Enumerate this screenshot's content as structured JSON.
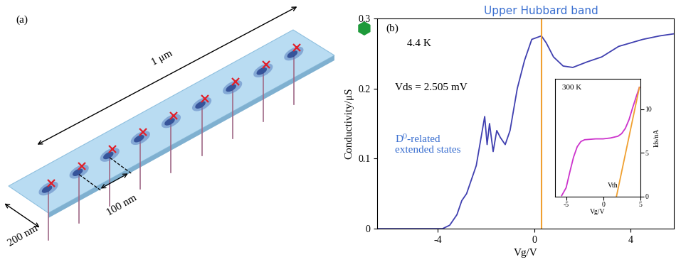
{
  "panel_a": {
    "label": "(a)",
    "length": "1 μm",
    "width": "200 nm",
    "spacing": "100 nm"
  },
  "chart_data": [
    {
      "type": "line",
      "title": "(b)",
      "x_label": "Vg/V",
      "y_label": "Conductivity/μS",
      "x": [
        -6.5,
        -4.5,
        -3.8,
        -3.5,
        -3.2,
        -3.0,
        -2.8,
        -2.6,
        -2.4,
        -2.2,
        -2.05,
        -1.95,
        -1.85,
        -1.7,
        -1.55,
        -1.4,
        -1.2,
        -1.0,
        -0.7,
        -0.4,
        -0.1,
        0.3,
        0.5,
        0.8,
        1.2,
        1.6,
        2.2,
        2.8,
        3.5,
        4.5,
        5.2,
        5.8
      ],
      "values": [
        0,
        0,
        0,
        0.005,
        0.02,
        0.04,
        0.05,
        0.07,
        0.09,
        0.13,
        0.16,
        0.12,
        0.15,
        0.11,
        0.14,
        0.13,
        0.12,
        0.14,
        0.2,
        0.24,
        0.27,
        0.275,
        0.265,
        0.245,
        0.232,
        0.23,
        0.238,
        0.245,
        0.26,
        0.27,
        0.275,
        0.278
      ],
      "color": "#4040b0",
      "xlim": [
        -6.5,
        5.8
      ],
      "xticks": [
        -4,
        0,
        4
      ],
      "ylim": [
        0,
        0.3
      ],
      "yticks": [
        0,
        0.1,
        0.2,
        0.3
      ],
      "annotations": [
        "4.4 K",
        "Vds = 2.505 mV",
        "D⁰-related\nextended states"
      ],
      "vertical_line": {
        "x": 0.3,
        "label": "Upper Hubbard band",
        "color": "#f0a030"
      }
    },
    {
      "type": "line",
      "title": "300 K",
      "x_label": "Vg/V",
      "y_label": "Ids/nA",
      "series": [
        {
          "x": [
            -5.6,
            -5.0,
            -4.5,
            -4.0,
            -3.5,
            -3.0,
            -2.5,
            -1.0,
            0.0,
            1.0,
            2.0,
            2.5,
            3.0,
            3.5,
            4.0,
            4.5,
            4.9
          ],
          "values": [
            0.1,
            1.0,
            2.8,
            4.5,
            5.7,
            6.3,
            6.5,
            6.6,
            6.6,
            6.7,
            6.9,
            7.2,
            7.8,
            8.8,
            10.2,
            11.5,
            12.5
          ],
          "color": "#cc33cc"
        },
        {
          "x": [
            1.8,
            4.9
          ],
          "values": [
            0,
            12.5
          ],
          "color": "#f0a030"
        }
      ],
      "xlim": [
        -6.5,
        5
      ],
      "xticks": [
        -5,
        0,
        5
      ],
      "ylim": [
        0,
        13.5
      ],
      "yticks": [
        0,
        5,
        10
      ],
      "annotations": [
        "Vth"
      ]
    }
  ]
}
